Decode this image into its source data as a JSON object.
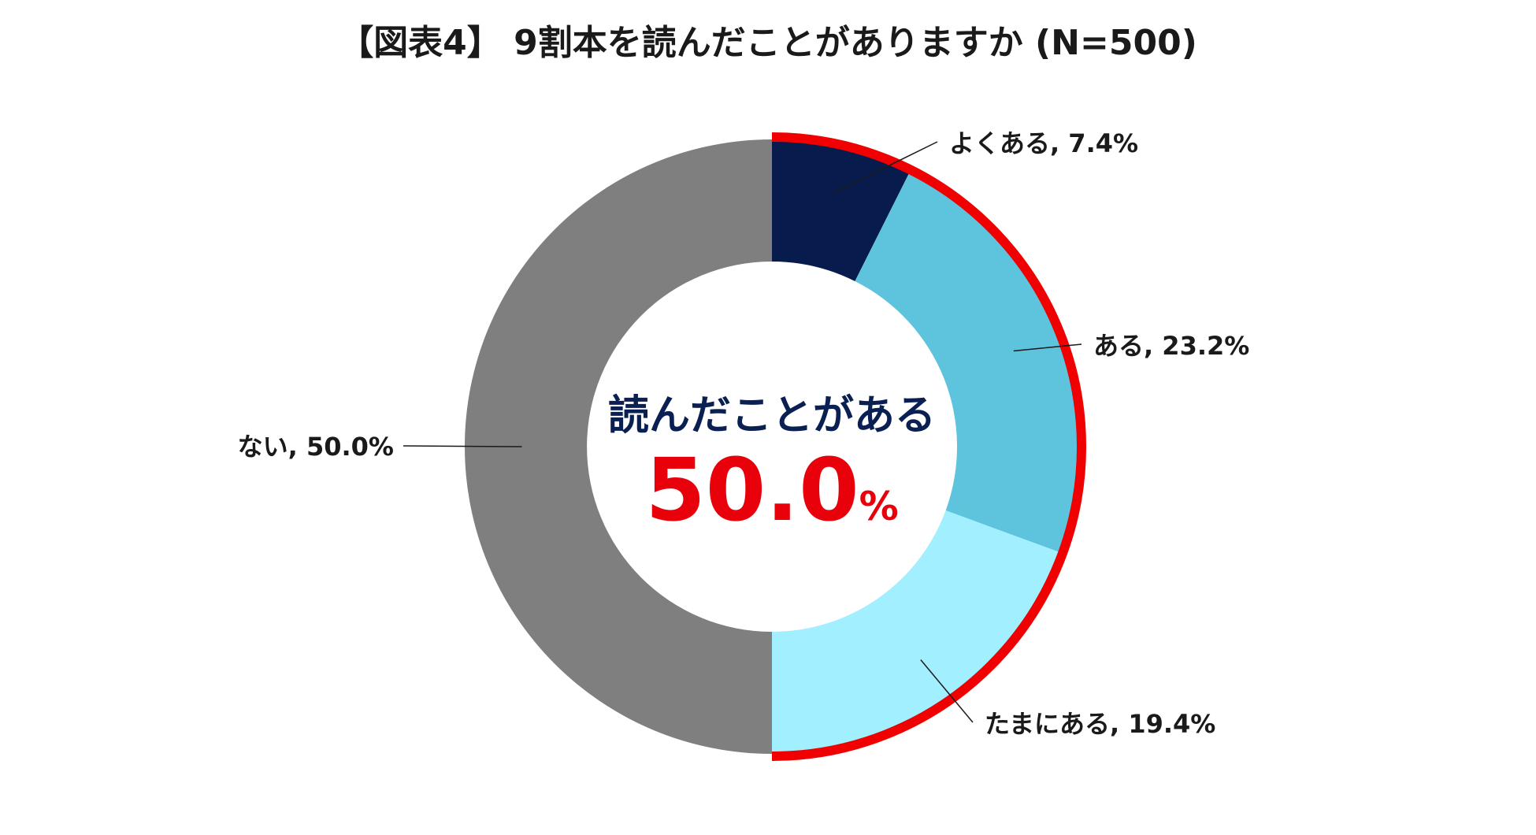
{
  "title": "【図表4】 9割本を読んだことがありますか (N=500)",
  "highlight": {
    "caption": "読んだことがある",
    "value": "50.0",
    "unit": "%",
    "caption_color": "#0a1f52",
    "value_color": "#e8000b",
    "ring_color": "#f00000"
  },
  "chart_data": {
    "type": "pie",
    "title": "【図表4】 9割本を読んだことがありますか (N=500)",
    "variant": "donut",
    "start": "12 o'clock, clockwise",
    "slices": [
      {
        "label": "よくある",
        "value": 7.4,
        "text": "よくある, 7.4%",
        "color": "#071c4d"
      },
      {
        "label": "ある",
        "value": 23.2,
        "text": "ある, 23.2%",
        "color": "#5ec3dd"
      },
      {
        "label": "たまにある",
        "value": 19.4,
        "text": "たまにある, 19.4%",
        "color": "#a2efff"
      },
      {
        "label": "ない",
        "value": 50.0,
        "text": "ない, 50.0%",
        "color": "#7f7f7f"
      }
    ],
    "legend": "none"
  }
}
